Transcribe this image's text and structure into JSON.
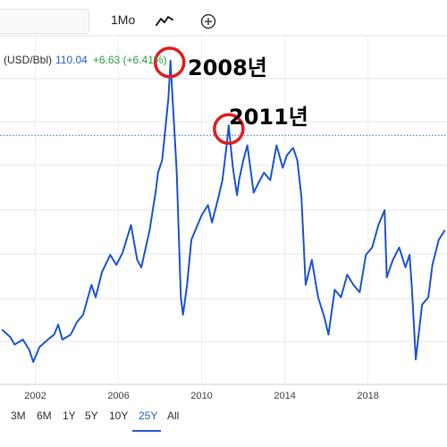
{
  "toolbar": {
    "interval_label": "1Mo",
    "icons": [
      "line-chart-icon",
      "add-circle-icon"
    ]
  },
  "quote": {
    "symbol_label": "(USD/Bbl)",
    "price": "110.04",
    "change": "+6.63 (+6.41%)"
  },
  "annotations": {
    "label_2008": "2008년",
    "label_2011": "2011년"
  },
  "ranges": [
    "3M",
    "6M",
    "1Y",
    "5Y",
    "10Y",
    "25Y",
    "All"
  ],
  "active_range": "25Y",
  "colors": {
    "line": "#1e55d8",
    "marker_circle": "#e21d1d",
    "price_line": "#4a78d8",
    "change_positive": "#2aa34a"
  },
  "chart_data": {
    "type": "line",
    "x_tick_labels": [
      "2002",
      "2006",
      "2010",
      "2014",
      "2018"
    ],
    "xlim": [
      2000.3,
      2021.8
    ],
    "ylim": [
      10,
      150
    ],
    "grid": true,
    "current_price_line": 110.04,
    "series": [
      {
        "values": [
          [
            2000.4,
            32
          ],
          [
            2000.8,
            29
          ],
          [
            2001.0,
            26
          ],
          [
            2001.4,
            28
          ],
          [
            2001.7,
            24
          ],
          [
            2001.9,
            19
          ],
          [
            2002.2,
            25
          ],
          [
            2002.6,
            28
          ],
          [
            2002.9,
            30
          ],
          [
            2003.1,
            34
          ],
          [
            2003.3,
            28
          ],
          [
            2003.7,
            30
          ],
          [
            2004.0,
            35
          ],
          [
            2004.3,
            38
          ],
          [
            2004.7,
            50
          ],
          [
            2004.9,
            45
          ],
          [
            2005.2,
            55
          ],
          [
            2005.6,
            62
          ],
          [
            2005.9,
            58
          ],
          [
            2006.2,
            63
          ],
          [
            2006.6,
            74
          ],
          [
            2006.9,
            60
          ],
          [
            2007.1,
            57
          ],
          [
            2007.5,
            72
          ],
          [
            2007.8,
            88
          ],
          [
            2007.9,
            95
          ],
          [
            2008.1,
            100
          ],
          [
            2008.4,
            125
          ],
          [
            2008.5,
            140
          ],
          [
            2008.6,
            125
          ],
          [
            2008.8,
            95
          ],
          [
            2008.9,
            70
          ],
          [
            2009.0,
            45
          ],
          [
            2009.1,
            38
          ],
          [
            2009.3,
            50
          ],
          [
            2009.5,
            68
          ],
          [
            2009.7,
            72
          ],
          [
            2010.0,
            78
          ],
          [
            2010.3,
            82
          ],
          [
            2010.5,
            75
          ],
          [
            2010.8,
            85
          ],
          [
            2011.0,
            92
          ],
          [
            2011.2,
            106
          ],
          [
            2011.3,
            114
          ],
          [
            2011.5,
            97
          ],
          [
            2011.7,
            86
          ],
          [
            2011.8,
            92
          ],
          [
            2012.0,
            100
          ],
          [
            2012.2,
            106
          ],
          [
            2012.5,
            87
          ],
          [
            2012.8,
            92
          ],
          [
            2013.0,
            95
          ],
          [
            2013.3,
            92
          ],
          [
            2013.6,
            106
          ],
          [
            2013.9,
            97
          ],
          [
            2014.1,
            102
          ],
          [
            2014.4,
            105
          ],
          [
            2014.6,
            100
          ],
          [
            2014.8,
            85
          ],
          [
            2015.0,
            50
          ],
          [
            2015.3,
            60
          ],
          [
            2015.6,
            45
          ],
          [
            2015.9,
            37
          ],
          [
            2016.1,
            30
          ],
          [
            2016.4,
            48
          ],
          [
            2016.7,
            45
          ],
          [
            2017.0,
            54
          ],
          [
            2017.3,
            50
          ],
          [
            2017.6,
            47
          ],
          [
            2017.9,
            62
          ],
          [
            2018.2,
            65
          ],
          [
            2018.5,
            74
          ],
          [
            2018.8,
            80
          ],
          [
            2018.9,
            53
          ],
          [
            2019.2,
            60
          ],
          [
            2019.5,
            65
          ],
          [
            2019.8,
            57
          ],
          [
            2020.0,
            62
          ],
          [
            2020.1,
            50
          ],
          [
            2020.3,
            20
          ],
          [
            2020.6,
            42
          ],
          [
            2020.9,
            45
          ],
          [
            2021.1,
            58
          ],
          [
            2021.4,
            68
          ],
          [
            2021.7,
            72
          ]
        ]
      }
    ]
  }
}
